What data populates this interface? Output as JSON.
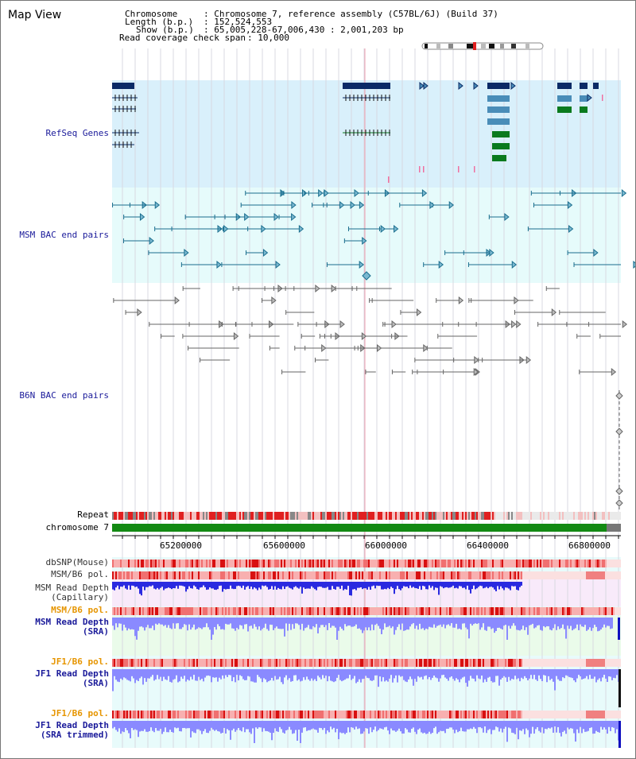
{
  "page": {
    "title": "Map View"
  },
  "info": {
    "chromosome_key": "Chromosome",
    "chromosome_value": ": Chromosome 7, reference assembly (C57BL/6J) (Build 37)",
    "length_key": "Length (b.p.)",
    "length_value": ": 152,524,553",
    "show_key": "Show (b.p.)",
    "show_value": ": 65,005,228-67,006,430 : 2,001,203 bp",
    "coverage_key": "Read coverage check span",
    "coverage_value": ": 10,000"
  },
  "tracks": {
    "refseq": {
      "label": "RefSeq Genes",
      "color": "#1a1a9a"
    },
    "msm_bac": {
      "label": "MSM BAC end pairs",
      "color": "#1a1a9a"
    },
    "b6n_bac": {
      "label": "B6N BAC end pairs",
      "color": "#1a1a9a"
    },
    "repeat": {
      "label": "Repeat",
      "color": "#000000"
    },
    "chromosome": {
      "label": "chromosome 7",
      "color": "#000000"
    },
    "dbsnp": {
      "label": "dbSNP(Mouse)",
      "color": "#333333"
    },
    "msm_b6_pol": {
      "label": "MSM/B6 pol.",
      "color": "#333333"
    },
    "msm_depth_cap": {
      "label": "MSM Read Depth",
      "label2": "(Capillary)",
      "color": "#333333"
    },
    "msm_b6_pol2": {
      "label": "MSM/B6 pol.",
      "color": "#e69500"
    },
    "msm_depth_sra": {
      "label": "MSM Read Depth",
      "label2": "(SRA)",
      "color": "#1a1a9a"
    },
    "jf1_b6_pol": {
      "label": "JF1/B6 pol.",
      "color": "#e69500"
    },
    "jf1_depth_sra": {
      "label": "JF1 Read Depth",
      "label2": "(SRA)",
      "color": "#1a1a9a"
    },
    "jf1_b6_pol2": {
      "label": "JF1/B6 pol.",
      "color": "#e69500"
    },
    "jf1_depth_trim": {
      "label": "JF1 Read Depth",
      "label2": "(SRA trimmed)",
      "color": "#1a1a9a"
    }
  },
  "axis": {
    "ticks": [
      "65200000",
      "65600000",
      "66000000",
      "66400000",
      "66800000"
    ]
  },
  "colors": {
    "refseq_bg": "#d9f0fb",
    "msm_bg": "#e6fbfb",
    "gene_dark": "#0b2a66",
    "gene_mid": "#4a8db8",
    "gene_green": "#0a7a1e",
    "bac_msm": "#1a6e8e",
    "bac_b6n": "#666666",
    "chrom_green": "#138a13",
    "repeat_red": "#e02020",
    "snp_red": "#e03030",
    "depth_blue": "#2a2ae0"
  }
}
